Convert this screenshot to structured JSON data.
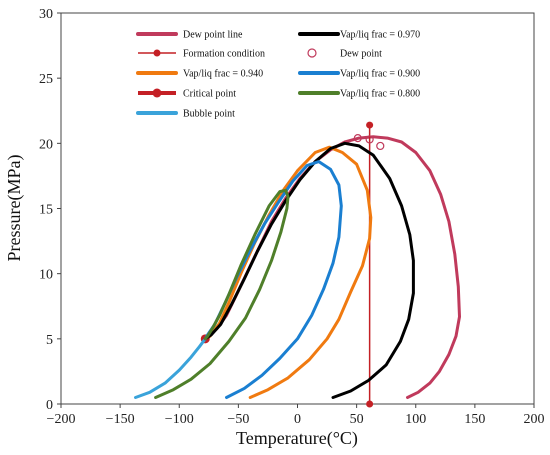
{
  "chart_data": {
    "type": "line",
    "xlabel": "Temperature(°C)",
    "ylabel": "Pressure(MPa)",
    "xlim": [
      -200,
      200
    ],
    "ylim": [
      0,
      30
    ],
    "x_ticks": [
      "−200",
      "−150",
      "−100",
      "−50",
      "0",
      "50",
      "100",
      "150",
      "200"
    ],
    "y_ticks": [
      "0",
      "5",
      "10",
      "15",
      "20",
      "25",
      "30"
    ],
    "grid": false,
    "legend_position": "top, two columns",
    "series": [
      {
        "name": "Dew point line",
        "color": "#c03a5c",
        "kind": "line",
        "points": [
          [
            93,
            0.5
          ],
          [
            102,
            0.9
          ],
          [
            112,
            1.6
          ],
          [
            120,
            2.5
          ],
          [
            128,
            3.8
          ],
          [
            134,
            5.2
          ],
          [
            137,
            6.7
          ],
          [
            136,
            9
          ],
          [
            133,
            11.5
          ],
          [
            128,
            14
          ],
          [
            121,
            16.1
          ],
          [
            112,
            17.9
          ],
          [
            100,
            19.3
          ],
          [
            88,
            20.1
          ],
          [
            76,
            20.4
          ],
          [
            64,
            20.5
          ],
          [
            52,
            20.4
          ],
          [
            40,
            20.1
          ],
          [
            28,
            19.5
          ],
          [
            15,
            18.6
          ],
          [
            2,
            17.3
          ],
          [
            -10,
            15.8
          ],
          [
            -22,
            14
          ],
          [
            -32,
            12.1
          ],
          [
            -42,
            10.2
          ],
          [
            -52,
            8.3
          ],
          [
            -60,
            6.8
          ],
          [
            -68,
            5.8
          ],
          [
            -74,
            5.3
          ],
          [
            -78,
            5.0
          ]
        ]
      },
      {
        "name": "Formation condition",
        "color": "#c42025",
        "kind": "marker-line",
        "points": [
          [
            61,
            0
          ],
          [
            61,
            21.4
          ]
        ]
      },
      {
        "name": "Vap/liq frac = 0.940",
        "color": "#f07a10",
        "kind": "line",
        "points": [
          [
            -40,
            0.5
          ],
          [
            -25,
            1.1
          ],
          [
            -8,
            2.0
          ],
          [
            10,
            3.4
          ],
          [
            25,
            5.0
          ],
          [
            35,
            6.5
          ],
          [
            45,
            8.6
          ],
          [
            55,
            10.6
          ],
          [
            61,
            12.7
          ],
          [
            62,
            14.3
          ],
          [
            59,
            16.4
          ],
          [
            50,
            18.4
          ],
          [
            38,
            19.3
          ],
          [
            27,
            19.7
          ],
          [
            15,
            19.3
          ],
          [
            0,
            17.9
          ],
          [
            -12,
            16.4
          ],
          [
            -24,
            14.5
          ],
          [
            -36,
            12.4
          ],
          [
            -47,
            10.2
          ],
          [
            -57,
            8.0
          ],
          [
            -66,
            6.2
          ],
          [
            -74,
            5.2
          ],
          [
            -78,
            5.0
          ]
        ]
      },
      {
        "name": "Critical point",
        "color": "#c42025",
        "kind": "marker",
        "points": [
          [
            -78,
            5.0
          ]
        ]
      },
      {
        "name": "Bubble point",
        "color": "#3aa3da",
        "kind": "line",
        "points": [
          [
            -137,
            0.5
          ],
          [
            -125,
            0.9
          ],
          [
            -112,
            1.6
          ],
          [
            -100,
            2.6
          ],
          [
            -90,
            3.6
          ],
          [
            -83,
            4.4
          ],
          [
            -78,
            5.0
          ]
        ]
      },
      {
        "name": "Vap/liq frac = 0.970",
        "color": "#000000",
        "kind": "line",
        "points": [
          [
            30,
            0.5
          ],
          [
            45,
            1.0
          ],
          [
            60,
            1.8
          ],
          [
            75,
            3.0
          ],
          [
            87,
            4.8
          ],
          [
            94,
            6.5
          ],
          [
            98,
            8.5
          ],
          [
            98,
            11.0
          ],
          [
            95,
            13.0
          ],
          [
            88,
            15.2
          ],
          [
            78,
            17.3
          ],
          [
            64,
            19.1
          ],
          [
            52,
            19.8
          ],
          [
            40,
            20.0
          ],
          [
            28,
            19.6
          ],
          [
            15,
            18.6
          ],
          [
            2,
            17.2
          ],
          [
            -10,
            15.6
          ],
          [
            -22,
            13.8
          ],
          [
            -34,
            11.7
          ],
          [
            -45,
            9.6
          ],
          [
            -56,
            7.6
          ],
          [
            -65,
            6.1
          ],
          [
            -73,
            5.3
          ],
          [
            -78,
            5.0
          ]
        ]
      },
      {
        "name": "Dew point",
        "color": "#c03a5c",
        "kind": "open-marker",
        "points": [
          [
            51,
            20.4
          ],
          [
            61,
            20.3
          ],
          [
            70,
            19.8
          ]
        ]
      },
      {
        "name": "Vap/liq frac = 0.900",
        "color": "#1a7fd1",
        "kind": "line",
        "points": [
          [
            -60,
            0.5
          ],
          [
            -45,
            1.2
          ],
          [
            -30,
            2.2
          ],
          [
            -15,
            3.5
          ],
          [
            0,
            5.0
          ],
          [
            12,
            6.8
          ],
          [
            22,
            8.8
          ],
          [
            30,
            10.8
          ],
          [
            35,
            12.8
          ],
          [
            37,
            15.2
          ],
          [
            35,
            16.8
          ],
          [
            28,
            18.0
          ],
          [
            18,
            18.6
          ],
          [
            8,
            18.3
          ],
          [
            -4,
            17.1
          ],
          [
            -16,
            15.5
          ],
          [
            -28,
            13.8
          ],
          [
            -40,
            11.8
          ],
          [
            -51,
            9.8
          ],
          [
            -61,
            7.8
          ],
          [
            -70,
            6.1
          ],
          [
            -76,
            5.3
          ],
          [
            -78,
            5.0
          ]
        ]
      },
      {
        "name": "Vap/liq frac = 0.800",
        "color": "#4f7f2a",
        "kind": "line",
        "points": [
          [
            -120,
            0.5
          ],
          [
            -105,
            1.1
          ],
          [
            -90,
            1.9
          ],
          [
            -74,
            3.1
          ],
          [
            -58,
            4.8
          ],
          [
            -44,
            6.6
          ],
          [
            -32,
            8.8
          ],
          [
            -22,
            11.0
          ],
          [
            -14,
            13.2
          ],
          [
            -9,
            15.0
          ],
          [
            -8,
            15.9
          ],
          [
            -10,
            16.4
          ],
          [
            -15,
            16.3
          ],
          [
            -24,
            15.2
          ],
          [
            -36,
            13.0
          ],
          [
            -48,
            10.6
          ],
          [
            -58,
            8.4
          ],
          [
            -66,
            6.8
          ],
          [
            -72,
            5.8
          ],
          [
            -76,
            5.2
          ],
          [
            -78,
            5.0
          ]
        ]
      }
    ]
  }
}
